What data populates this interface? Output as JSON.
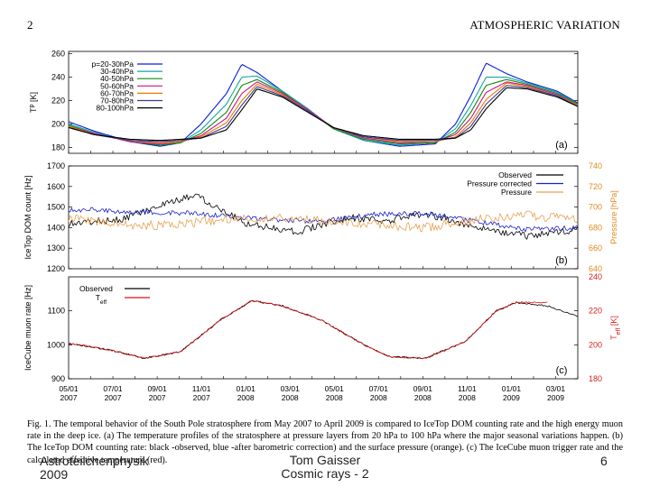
{
  "header": {
    "page_number": "2",
    "running_title": "ATMOSPHERIC VARIATION"
  },
  "caption": "Fig. 1.   The temporal behavior of the South Pole stratosphere from May 2007 to April 2009 is compared to IceTop DOM counting rate and the high energy muon rate in the deep ice. (a) The temperature profiles of the stratosphere at pressure layers from 20 hPa to 100 hPa where the major seasonal variations happen. (b) The IceTop DOM counting rate: black -observed, blue -after barometric correction) and the surface pressure (orange). (c) The IceCube muon trigger rate and the calculated effective temperature (red).",
  "footer": {
    "left": "Astroteilchenphysik",
    "year": "2009",
    "center": "Tom Gaisser Cosmic rays - 2",
    "right": "6"
  },
  "chart_data": [
    {
      "type": "line",
      "panel_label": "(a)",
      "ylabel": "T",
      "ylabel_sup": "p",
      "ylabel_unit": "[K]",
      "yticks": [
        "260",
        "240",
        "220",
        "200",
        "180"
      ],
      "ylim": [
        175,
        262
      ],
      "legend_placement": "top-left",
      "series": [
        {
          "name": "p=20-30hPa",
          "color": "#0b1fd6",
          "knots": [
            [
              0,
              202
            ],
            [
              0.05,
              194
            ],
            [
              0.12,
              185
            ],
            [
              0.18,
              181
            ],
            [
              0.22,
              184
            ],
            [
              0.26,
              200
            ],
            [
              0.31,
              226
            ],
            [
              0.34,
              251
            ],
            [
              0.37,
              244
            ],
            [
              0.42,
              228
            ],
            [
              0.47,
              213
            ],
            [
              0.52,
              196
            ],
            [
              0.58,
              186
            ],
            [
              0.65,
              181
            ],
            [
              0.72,
              183
            ],
            [
              0.76,
              200
            ],
            [
              0.79,
              224
            ],
            [
              0.82,
              252
            ],
            [
              0.86,
              243
            ],
            [
              0.9,
              236
            ],
            [
              0.96,
              228
            ],
            [
              1,
              218
            ]
          ]
        },
        {
          "name": "30-40hPa",
          "color": "#15a6a6",
          "knots": [
            [
              0,
              200
            ],
            [
              0.05,
              193
            ],
            [
              0.12,
              185
            ],
            [
              0.18,
              182
            ],
            [
              0.22,
              184
            ],
            [
              0.26,
              195
            ],
            [
              0.31,
              217
            ],
            [
              0.34,
              240
            ],
            [
              0.37,
              241
            ],
            [
              0.42,
              228
            ],
            [
              0.47,
              213
            ],
            [
              0.52,
              196
            ],
            [
              0.58,
              186
            ],
            [
              0.65,
              182
            ],
            [
              0.72,
              184
            ],
            [
              0.76,
              196
            ],
            [
              0.79,
              216
            ],
            [
              0.82,
              240
            ],
            [
              0.86,
              240
            ],
            [
              0.9,
              235
            ],
            [
              0.96,
              227
            ],
            [
              1,
              217
            ]
          ]
        },
        {
          "name": "40-50hPa",
          "color": "#0b8a0b",
          "knots": [
            [
              0,
              199
            ],
            [
              0.05,
              192
            ],
            [
              0.12,
              185
            ],
            [
              0.18,
              182
            ],
            [
              0.22,
              184
            ],
            [
              0.26,
              192
            ],
            [
              0.31,
              210
            ],
            [
              0.34,
              233
            ],
            [
              0.37,
              238
            ],
            [
              0.42,
              227
            ],
            [
              0.47,
              212
            ],
            [
              0.52,
              196
            ],
            [
              0.58,
              187
            ],
            [
              0.65,
              183
            ],
            [
              0.72,
              184
            ],
            [
              0.76,
              193
            ],
            [
              0.79,
              210
            ],
            [
              0.82,
              233
            ],
            [
              0.86,
              238
            ],
            [
              0.9,
              234
            ],
            [
              0.96,
              226
            ],
            [
              1,
              217
            ]
          ]
        },
        {
          "name": "50-60hPa",
          "color": "#d1127f",
          "knots": [
            [
              0,
              198
            ],
            [
              0.05,
              192
            ],
            [
              0.12,
              185
            ],
            [
              0.18,
              183
            ],
            [
              0.22,
              185
            ],
            [
              0.26,
              190
            ],
            [
              0.31,
              205
            ],
            [
              0.34,
              226
            ],
            [
              0.37,
              236
            ],
            [
              0.42,
              226
            ],
            [
              0.47,
              212
            ],
            [
              0.52,
              197
            ],
            [
              0.58,
              188
            ],
            [
              0.65,
              184
            ],
            [
              0.72,
              185
            ],
            [
              0.76,
              191
            ],
            [
              0.79,
              205
            ],
            [
              0.82,
              227
            ],
            [
              0.86,
              236
            ],
            [
              0.9,
              233
            ],
            [
              0.96,
              225
            ],
            [
              1,
              216
            ]
          ]
        },
        {
          "name": "60-70hPa",
          "color": "#ee7700",
          "knots": [
            [
              0,
              198
            ],
            [
              0.05,
              191
            ],
            [
              0.12,
              186
            ],
            [
              0.18,
              184
            ],
            [
              0.22,
              185
            ],
            [
              0.26,
              189
            ],
            [
              0.31,
              201
            ],
            [
              0.34,
              220
            ],
            [
              0.37,
              234
            ],
            [
              0.42,
              225
            ],
            [
              0.47,
              211
            ],
            [
              0.52,
              197
            ],
            [
              0.58,
              189
            ],
            [
              0.65,
              185
            ],
            [
              0.72,
              185
            ],
            [
              0.76,
              189
            ],
            [
              0.79,
              201
            ],
            [
              0.82,
              221
            ],
            [
              0.86,
              235
            ],
            [
              0.9,
              232
            ],
            [
              0.96,
              224
            ],
            [
              1,
              216
            ]
          ]
        },
        {
          "name": "70-80hPa",
          "color": "#3a3a8c",
          "knots": [
            [
              0,
              197
            ],
            [
              0.05,
              191
            ],
            [
              0.12,
              186
            ],
            [
              0.18,
              185
            ],
            [
              0.22,
              186
            ],
            [
              0.26,
              188
            ],
            [
              0.31,
              198
            ],
            [
              0.34,
              216
            ],
            [
              0.37,
              232
            ],
            [
              0.42,
              224
            ],
            [
              0.47,
              211
            ],
            [
              0.52,
              197
            ],
            [
              0.58,
              189
            ],
            [
              0.65,
              186
            ],
            [
              0.72,
              186
            ],
            [
              0.76,
              188
            ],
            [
              0.79,
              198
            ],
            [
              0.82,
              217
            ],
            [
              0.86,
              233
            ],
            [
              0.9,
              231
            ],
            [
              0.96,
              224
            ],
            [
              1,
              215
            ]
          ]
        },
        {
          "name": "80-100hPa",
          "color": "#000000",
          "knots": [
            [
              0,
              197
            ],
            [
              0.05,
              191
            ],
            [
              0.12,
              187
            ],
            [
              0.18,
              186
            ],
            [
              0.22,
              187
            ],
            [
              0.26,
              188
            ],
            [
              0.31,
              195
            ],
            [
              0.34,
              212
            ],
            [
              0.37,
              230
            ],
            [
              0.42,
              223
            ],
            [
              0.47,
              210
            ],
            [
              0.52,
              197
            ],
            [
              0.58,
              190
            ],
            [
              0.65,
              187
            ],
            [
              0.72,
              187
            ],
            [
              0.76,
              188
            ],
            [
              0.79,
              195
            ],
            [
              0.82,
              213
            ],
            [
              0.86,
              231
            ],
            [
              0.9,
              230
            ],
            [
              0.96,
              223
            ],
            [
              1,
              215
            ]
          ]
        }
      ]
    },
    {
      "type": "line",
      "panel_label": "(b)",
      "ylabel": "IceTop DOM count [Hz]",
      "yticks": [
        "1700",
        "1600",
        "1500",
        "1400",
        "1300",
        "1200"
      ],
      "ylim": [
        1200,
        1700
      ],
      "y2label": "Pressure [hPa]",
      "y2ticks": [
        "740",
        "720",
        "700",
        "680",
        "660",
        "640"
      ],
      "y2lim": [
        640,
        740
      ],
      "legend_placement": "top-right",
      "series": [
        {
          "name": "Observed",
          "color": "#000000",
          "knots": [
            [
              0,
              1420
            ],
            [
              0.1,
              1440
            ],
            [
              0.15,
              1480
            ],
            [
              0.25,
              1560
            ],
            [
              0.35,
              1420
            ],
            [
              0.45,
              1380
            ],
            [
              0.55,
              1450
            ],
            [
              0.62,
              1430
            ],
            [
              0.7,
              1470
            ],
            [
              0.8,
              1400
            ],
            [
              0.9,
              1360
            ],
            [
              1,
              1390
            ]
          ],
          "noise": 0.035
        },
        {
          "name": "Pressure corrected",
          "color": "#1a22cc",
          "knots": [
            [
              0,
              1490
            ],
            [
              0.1,
              1480
            ],
            [
              0.25,
              1470
            ],
            [
              0.35,
              1445
            ],
            [
              0.5,
              1430
            ],
            [
              0.6,
              1465
            ],
            [
              0.7,
              1470
            ],
            [
              0.8,
              1430
            ],
            [
              0.9,
              1390
            ],
            [
              1,
              1400
            ]
          ],
          "noise": 0.025
        },
        {
          "name": "Pressure",
          "color": "#e8a050",
          "knots": [
            [
              0,
              690
            ],
            [
              0.1,
              683
            ],
            [
              0.2,
              682
            ],
            [
              0.3,
              688
            ],
            [
              0.45,
              690
            ],
            [
              0.5,
              686
            ],
            [
              0.6,
              683
            ],
            [
              0.7,
              680
            ],
            [
              0.8,
              688
            ],
            [
              0.9,
              692
            ],
            [
              1,
              688
            ]
          ],
          "noise": 0.045,
          "axis": "right"
        }
      ]
    },
    {
      "type": "line",
      "panel_label": "(c)",
      "ylabel": "IceCube muon rate [Hz]",
      "yticks": [
        "1100",
        "1000",
        "900"
      ],
      "ylim": [
        900,
        1200
      ],
      "y2label": "T",
      "y2label_sub": "eff",
      "y2label_unit": "[K]",
      "y2ticks": [
        "240",
        "220",
        "200",
        "180"
      ],
      "y2lim": [
        180,
        240
      ],
      "legend_placement": "top-left",
      "xticks": [
        [
          "05/01",
          "2007"
        ],
        [
          "07/01",
          "2007"
        ],
        [
          "09/01",
          "2007"
        ],
        [
          "11/01",
          "2007"
        ],
        [
          "01/01",
          "2008"
        ],
        [
          "03/01",
          "2008"
        ],
        [
          "05/01",
          "2008"
        ],
        [
          "07/01",
          "2008"
        ],
        [
          "09/01",
          "2008"
        ],
        [
          "11/01",
          "2008"
        ],
        [
          "01/01",
          "2009"
        ],
        [
          "03/01",
          "2009"
        ]
      ],
      "series": [
        {
          "name": "Observed",
          "color": "#000000",
          "knots": [
            [
              0,
              1005
            ],
            [
              0.08,
              985
            ],
            [
              0.15,
              960
            ],
            [
              0.22,
              980
            ],
            [
              0.3,
              1075
            ],
            [
              0.36,
              1130
            ],
            [
              0.42,
              1115
            ],
            [
              0.5,
              1070
            ],
            [
              0.58,
              1000
            ],
            [
              0.63,
              965
            ],
            [
              0.7,
              960
            ],
            [
              0.78,
              1010
            ],
            [
              0.84,
              1100
            ],
            [
              0.88,
              1125
            ],
            [
              0.94,
              1115
            ],
            [
              1,
              1085
            ]
          ],
          "noise": 0.008
        },
        {
          "name": "T_eff",
          "color": "#dd1111",
          "knots": [
            [
              0,
              201
            ],
            [
              0.08,
              197
            ],
            [
              0.15,
              192
            ],
            [
              0.22,
              196
            ],
            [
              0.3,
              215
            ],
            [
              0.36,
              226
            ],
            [
              0.42,
              223
            ],
            [
              0.5,
              214
            ],
            [
              0.58,
              200
            ],
            [
              0.63,
              193
            ],
            [
              0.7,
              192
            ],
            [
              0.78,
              202
            ],
            [
              0.84,
              220
            ],
            [
              0.88,
              225
            ],
            [
              0.94,
              225
            ]
          ],
          "noise": 0.006,
          "axis": "right"
        }
      ]
    }
  ]
}
